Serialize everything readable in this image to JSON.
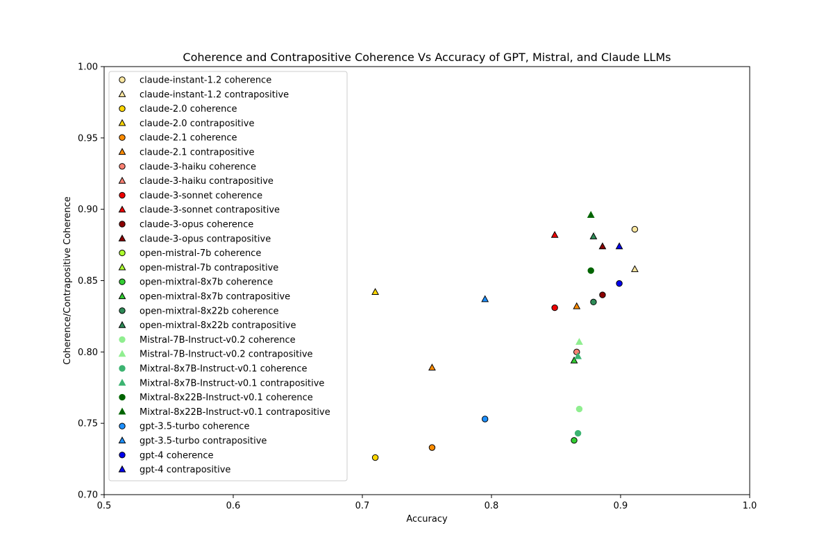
{
  "chart_data": {
    "type": "scatter",
    "title": "Coherence and Contrapositive Coherence Vs Accuracy of GPT, Mistral, and Claude LLMs",
    "xlabel": "Accuracy",
    "ylabel": "Coherence/Contrapositive Coherence",
    "xlim": [
      0.5,
      1.0
    ],
    "ylim": [
      0.7,
      1.0
    ],
    "xticks": [
      "0.5",
      "0.6",
      "0.7",
      "0.8",
      "0.9",
      "1.0"
    ],
    "yticks": [
      "0.70",
      "0.75",
      "0.80",
      "0.85",
      "0.90",
      "0.95",
      "1.00"
    ],
    "grid": false,
    "legend_position": "upper-left",
    "series": [
      {
        "name": "claude-instant-1.2 coherence",
        "marker": "circle",
        "color": "#fbe7a1",
        "edge": true,
        "x": [
          0.911
        ],
        "y": [
          0.886
        ]
      },
      {
        "name": "claude-instant-1.2 contrapositive",
        "marker": "triangle",
        "color": "#fbe7a1",
        "edge": true,
        "x": [
          0.911
        ],
        "y": [
          0.858
        ]
      },
      {
        "name": "claude-2.0 coherence",
        "marker": "circle",
        "color": "#ffd700",
        "edge": true,
        "x": [
          0.71
        ],
        "y": [
          0.726
        ]
      },
      {
        "name": "claude-2.0 contrapositive",
        "marker": "triangle",
        "color": "#ffd700",
        "edge": true,
        "x": [
          0.71
        ],
        "y": [
          0.842
        ]
      },
      {
        "name": "claude-2.1 coherence",
        "marker": "circle",
        "color": "#ff8c00",
        "edge": true,
        "x": [
          0.754
        ],
        "y": [
          0.733
        ]
      },
      {
        "name": "claude-2.1 contrapositive",
        "marker": "triangle",
        "color": "#ff8c00",
        "edge": true,
        "x": [
          0.754,
          0.866
        ],
        "y": [
          0.789,
          0.832
        ]
      },
      {
        "name": "claude-3-haiku coherence",
        "marker": "circle",
        "color": "#fa8072",
        "edge": true,
        "x": [
          0.866
        ],
        "y": [
          0.8
        ]
      },
      {
        "name": "claude-3-haiku contrapositive",
        "marker": "triangle",
        "color": "#fa8072",
        "edge": true,
        "x": [],
        "y": []
      },
      {
        "name": "claude-3-sonnet coherence",
        "marker": "circle",
        "color": "#ee0000",
        "edge": true,
        "x": [
          0.849
        ],
        "y": [
          0.831
        ]
      },
      {
        "name": "claude-3-sonnet contrapositive",
        "marker": "triangle",
        "color": "#ee0000",
        "edge": true,
        "x": [
          0.849
        ],
        "y": [
          0.882
        ]
      },
      {
        "name": "claude-3-opus coherence",
        "marker": "circle",
        "color": "#8b0000",
        "edge": true,
        "x": [
          0.886
        ],
        "y": [
          0.84
        ]
      },
      {
        "name": "claude-3-opus contrapositive",
        "marker": "triangle",
        "color": "#8b0000",
        "edge": true,
        "x": [
          0.886
        ],
        "y": [
          0.874
        ]
      },
      {
        "name": "open-mistral-7b coherence",
        "marker": "circle",
        "color": "#adff2f",
        "edge": true,
        "x": [],
        "y": []
      },
      {
        "name": "open-mistral-7b contrapositive",
        "marker": "triangle",
        "color": "#adff2f",
        "edge": true,
        "x": [],
        "y": []
      },
      {
        "name": "open-mixtral-8x7b coherence",
        "marker": "circle",
        "color": "#32cd32",
        "edge": true,
        "x": [
          0.864
        ],
        "y": [
          0.738
        ]
      },
      {
        "name": "open-mixtral-8x7b contrapositive",
        "marker": "triangle",
        "color": "#32cd32",
        "edge": true,
        "x": [
          0.864
        ],
        "y": [
          0.794
        ]
      },
      {
        "name": "open-mixtral-8x22b coherence",
        "marker": "circle",
        "color": "#2e8b57",
        "edge": true,
        "x": [
          0.879
        ],
        "y": [
          0.835
        ]
      },
      {
        "name": "open-mixtral-8x22b contrapositive",
        "marker": "triangle",
        "color": "#2e8b57",
        "edge": true,
        "x": [
          0.879
        ],
        "y": [
          0.881
        ]
      },
      {
        "name": "Mistral-7B-Instruct-v0.2 coherence",
        "marker": "circle",
        "color": "#90ee90",
        "edge": false,
        "x": [
          0.868
        ],
        "y": [
          0.76
        ]
      },
      {
        "name": "Mistral-7B-Instruct-v0.2 contrapositive",
        "marker": "triangle",
        "color": "#90ee90",
        "edge": false,
        "x": [
          0.868
        ],
        "y": [
          0.807
        ]
      },
      {
        "name": "Mixtral-8x7B-Instruct-v0.1 coherence",
        "marker": "circle",
        "color": "#3cb371",
        "edge": false,
        "x": [
          0.867
        ],
        "y": [
          0.743
        ]
      },
      {
        "name": "Mixtral-8x7B-Instruct-v0.1 contrapositive",
        "marker": "triangle",
        "color": "#3cb371",
        "edge": false,
        "x": [
          0.867
        ],
        "y": [
          0.797
        ]
      },
      {
        "name": "Mixtral-8x22B-Instruct-v0.1 coherence",
        "marker": "circle",
        "color": "#006400",
        "edge": false,
        "x": [
          0.877
        ],
        "y": [
          0.857
        ]
      },
      {
        "name": "Mixtral-8x22B-Instruct-v0.1 contrapositive",
        "marker": "triangle",
        "color": "#006400",
        "edge": false,
        "x": [
          0.877
        ],
        "y": [
          0.896
        ]
      },
      {
        "name": "gpt-3.5-turbo coherence",
        "marker": "circle",
        "color": "#1e90ff",
        "edge": true,
        "x": [
          0.795
        ],
        "y": [
          0.753
        ]
      },
      {
        "name": "gpt-3.5-turbo contrapositive",
        "marker": "triangle",
        "color": "#1e90ff",
        "edge": true,
        "x": [
          0.795
        ],
        "y": [
          0.837
        ]
      },
      {
        "name": "gpt-4 coherence",
        "marker": "circle",
        "color": "#0000ee",
        "edge": true,
        "x": [
          0.899
        ],
        "y": [
          0.848
        ]
      },
      {
        "name": "gpt-4 contrapositive",
        "marker": "triangle",
        "color": "#0000ee",
        "edge": true,
        "x": [
          0.899
        ],
        "y": [
          0.874
        ]
      }
    ]
  }
}
